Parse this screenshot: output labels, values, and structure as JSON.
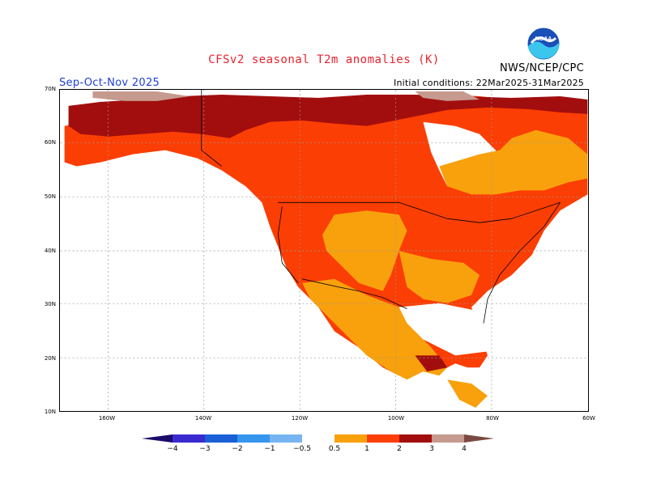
{
  "header": {
    "title": "CFSv2 seasonal T2m anomalies (K)",
    "agency": "NWS/NCEP/CPC",
    "season": "Sep-Oct-Nov 2025",
    "initial_conditions": "Initial conditions: 22Mar2025-31Mar2025",
    "logo_icon": "noaa-logo-icon"
  },
  "axes": {
    "lat_labels": [
      "70N",
      "60N",
      "50N",
      "40N",
      "30N",
      "20N",
      "10N"
    ],
    "lon_labels": [
      "160W",
      "140W",
      "120W",
      "100W",
      "80W",
      "60W"
    ]
  },
  "legend": {
    "ticks": [
      "−4",
      "−3",
      "−2",
      "−1",
      "−0.5",
      "0.5",
      "1",
      "2",
      "3",
      "4"
    ],
    "colors": {
      "below_minus4": "#1a0a6b",
      "m4_m3": "#3a2bd1",
      "m3_m2": "#1a5fd6",
      "m2_m1": "#3596ee",
      "m1_m05": "#76b5f2",
      "m05_05": "#ffffff",
      "p05_1": "#f8a10c",
      "p1_2": "#fb3e04",
      "p2_3": "#a20e0e",
      "p3_4": "#c69a8e",
      "above_4": "#7a4a40"
    }
  },
  "map_data": {
    "region": "North America",
    "variable": "2m temperature anomaly (K)",
    "lat_range": [
      10,
      70
    ],
    "lon_range": [
      -170,
      -60
    ],
    "anomaly_zones": [
      {
        "category": "2 to 3",
        "region": "Alaska, northern Canada, Arctic"
      },
      {
        "category": "3 to 4",
        "region": "Northern Alaska coast, Arctic islands"
      },
      {
        "category": "1 to 2",
        "region": "Western Canada, Pacific NW, Great Plains, Eastern US, New England"
      },
      {
        "category": "0.5 to 1",
        "region": "Interior West, Mexico, Southern Plains, Hudson Bay region, Labrador"
      },
      {
        "category": "-0.5 to 0.5",
        "region": "Hudson Bay, oceans, Caribbean"
      }
    ]
  }
}
